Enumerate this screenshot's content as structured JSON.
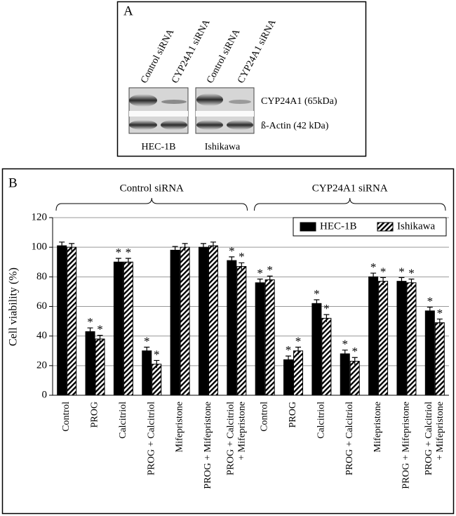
{
  "panel_a": {
    "label": "A",
    "lanes": [
      "Control siRNA",
      "CYP24A1 siRNA",
      "Control siRNA",
      "CYP24A1 siRNA"
    ],
    "bands": [
      "CYP24A1 (65kDa)",
      "ß-Actin (42 kDa)"
    ],
    "cell_lines": [
      "HEC-1B",
      "Ishikawa"
    ]
  },
  "chart_data": {
    "type": "bar",
    "panel_label": "B",
    "y_label": "Cell viability (%)",
    "groups": [
      {
        "label": "Control siRNA",
        "categories": [
          "Control",
          "PROG",
          "Calcitriol",
          "PROG + Calcitriol",
          "Mifepristone",
          "PROG + Mifepristone",
          "PROG + Calcitriol\n+ Mifepristone"
        ]
      },
      {
        "label": "CYP24A1 siRNA",
        "categories": [
          "Control",
          "PROG",
          "Calcitriol",
          "PROG + Calcitriol",
          "Mifepristone",
          "PROG + Mifepristone",
          "PROG + Calcitriol\n+ Mifepristone"
        ]
      }
    ],
    "series": [
      {
        "name": "HEC-1B",
        "color": "#000000",
        "values": [
          101,
          43,
          90,
          30,
          98,
          100,
          91,
          76,
          24,
          62,
          28,
          80,
          77,
          57
        ],
        "errors": [
          2.5,
          2.5,
          2.5,
          2.5,
          2.5,
          2.5,
          2.5,
          2.5,
          2.5,
          2.5,
          2.5,
          2.5,
          2.5,
          2.5
        ],
        "markers": [
          null,
          "*",
          "*",
          "*",
          null,
          null,
          "*",
          "*",
          "*",
          "*",
          "*",
          "*",
          "*",
          "*"
        ]
      },
      {
        "name": "Ishikawa",
        "color": "hatch",
        "values": [
          100,
          38,
          90,
          21,
          100,
          101,
          87,
          78,
          30,
          52,
          23,
          77,
          76,
          49
        ],
        "errors": [
          2.5,
          2.5,
          2.5,
          2.5,
          2.5,
          2.5,
          2.5,
          2.5,
          2.5,
          2.5,
          2.5,
          2.5,
          2.5,
          2.5
        ],
        "markers": [
          null,
          "*",
          "*",
          "*",
          null,
          null,
          "*",
          "*",
          "*",
          "*",
          "*",
          "*",
          "*",
          "*"
        ]
      }
    ],
    "ylim": [
      0,
      120
    ],
    "yticks": [
      0,
      20,
      40,
      60,
      80,
      100,
      120
    ],
    "grid": true,
    "legend": "top-right"
  }
}
